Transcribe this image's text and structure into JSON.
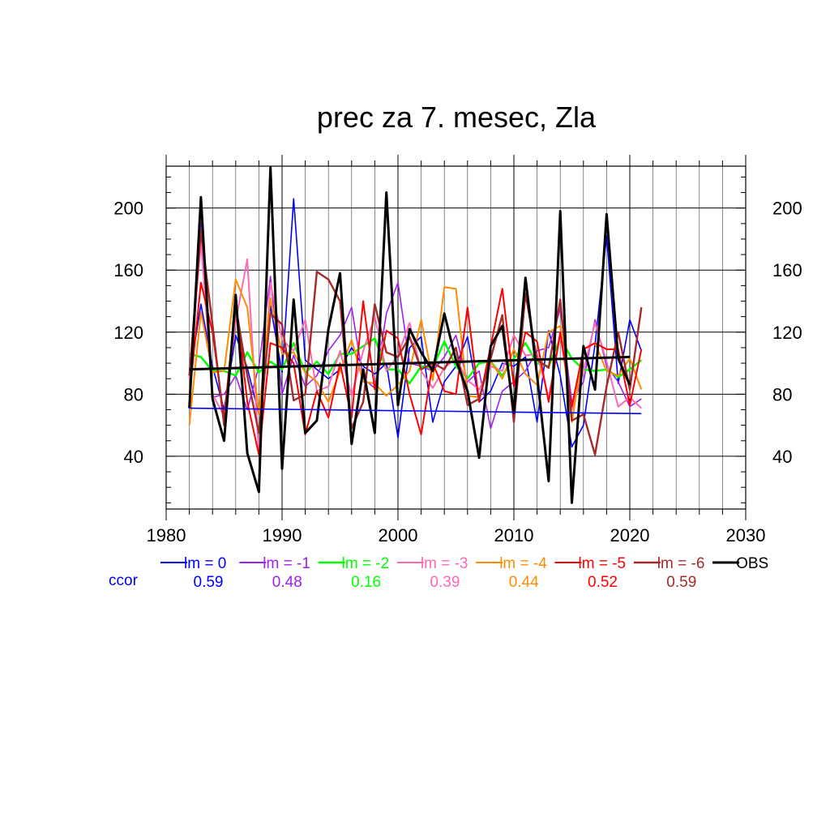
{
  "chart_data": {
    "type": "line",
    "title": "prec za 7. mesec, Zla",
    "xlabel": "",
    "ylabel": "",
    "xlim": [
      1980,
      2030
    ],
    "ylim": [
      6,
      227
    ],
    "x_ticks": [
      "1980",
      "1990",
      "2000",
      "2010",
      "2020",
      "2030"
    ],
    "x_tick_values": [
      1980,
      1990,
      2000,
      2010,
      2020,
      2030
    ],
    "y_ticks": [
      "40",
      "80",
      "120",
      "160",
      "200"
    ],
    "y_tick_values": [
      40,
      80,
      120,
      160,
      200
    ],
    "grid": true,
    "legend_position": "bottom",
    "ccor_label": "ccor",
    "x": [
      1982,
      1983,
      1984,
      1985,
      1986,
      1987,
      1988,
      1989,
      1990,
      1991,
      1992,
      1993,
      1994,
      1995,
      1996,
      1997,
      1998,
      1999,
      2000,
      2001,
      2002,
      2003,
      2004,
      2005,
      2006,
      2007,
      2008,
      2009,
      2010,
      2011,
      2012,
      2013,
      2014,
      2015,
      2016,
      2017,
      2018,
      2019,
      2020,
      2021
    ],
    "series": [
      {
        "name": "lm = 0",
        "color": "#0000ff",
        "width": 1.6,
        "ccor": "0.59",
        "values": [
          91,
          138,
          98,
          70,
          118,
          97,
          67,
          137,
          94,
          206,
          102,
          96,
          90,
          96,
          110,
          98,
          93,
          100,
          52,
          110,
          117,
          62,
          88,
          98,
          117,
          75,
          82,
          100,
          98,
          104,
          62,
          121,
          92,
          46,
          60,
          112,
          182,
          87,
          128,
          108
        ]
      },
      {
        "name": "lm = -1",
        "color": "#a020f0",
        "width": 1.6,
        "ccor": "0.48",
        "values": [
          92,
          191,
          78,
          80,
          92,
          70,
          98,
          156,
          80,
          105,
          85,
          92,
          108,
          118,
          136,
          90,
          84,
          132,
          152,
          100,
          98,
          95,
          104,
          118,
          88,
          95,
          58,
          82,
          88,
          95,
          108,
          110,
          135,
          75,
          88,
          128,
          98,
          88,
          72,
          77
        ]
      },
      {
        "name": "lm = -2",
        "color": "#00ff00",
        "width": 2.5,
        "ccor": "0.16",
        "values": [
          106,
          104,
          95,
          95,
          92,
          107,
          94,
          101,
          96,
          113,
          94,
          101,
          93,
          106,
          106,
          111,
          116,
          96,
          96,
          87,
          98,
          97,
          114,
          98,
          90,
          100,
          101,
          92,
          103,
          113,
          100,
          98,
          116,
          103,
          96,
          95,
          96,
          91,
          96,
          102
        ]
      },
      {
        "name": "lm = -3",
        "color": "#ff69b4",
        "width": 2.0,
        "ccor": "0.39",
        "values": [
          90,
          178,
          80,
          66,
          127,
          167,
          42,
          152,
          115,
          108,
          128,
          82,
          85,
          108,
          79,
          108,
          130,
          95,
          105,
          126,
          95,
          84,
          97,
          103,
          89,
          83,
          98,
          95,
          118,
          105,
          106,
          78,
          118,
          70,
          95,
          126,
          101,
          72,
          78,
          71
        ]
      },
      {
        "name": "lm = -4",
        "color": "#ff8c00",
        "width": 2.0,
        "ccor": "0.44",
        "values": [
          60,
          133,
          94,
          95,
          154,
          136,
          67,
          142,
          106,
          107,
          94,
          88,
          75,
          95,
          115,
          88,
          87,
          79,
          86,
          95,
          128,
          89,
          149,
          148,
          79,
          78,
          101,
          90,
          109,
          93,
          86,
          120,
          124,
          62,
          109,
          113,
          95,
          92,
          103,
          83
        ]
      },
      {
        "name": "lm = -5",
        "color": "#ff0000",
        "width": 2.0,
        "ccor": "0.52",
        "values": [
          78,
          152,
          120,
          64,
          140,
          75,
          41,
          113,
          110,
          100,
          54,
          82,
          65,
          100,
          65,
          140,
          83,
          121,
          116,
          80,
          54,
          100,
          82,
          80,
          136,
          75,
          111,
          148,
          85,
          120,
          114,
          75,
          120,
          72,
          109,
          113,
          109,
          109,
          73,
          109
        ]
      },
      {
        "name": "lm = -6",
        "color": "#a52a2a",
        "width": 2.4,
        "ccor": "0.59",
        "values": [
          92,
          185,
          125,
          60,
          137,
          92,
          55,
          132,
          125,
          76,
          80,
          159,
          154,
          140,
          58,
          75,
          138,
          107,
          104,
          117,
          96,
          100,
          96,
          110,
          73,
          77,
          103,
          131,
          62,
          145,
          102,
          97,
          141,
          63,
          67,
          41,
          85,
          120,
          83,
          136
        ]
      },
      {
        "name": "OBS",
        "color": "#000000",
        "width": 3.0,
        "ccor": "",
        "values": [
          71,
          207,
          77,
          50,
          144,
          42,
          17,
          226,
          32,
          141,
          55,
          63,
          122,
          158,
          48,
          96,
          55,
          210,
          73,
          122,
          107,
          95,
          132,
          102,
          82,
          39,
          111,
          124,
          68,
          155,
          92,
          24,
          198,
          10,
          111,
          83,
          196,
          103,
          86,
          null
        ]
      }
    ],
    "trend_lines": [
      {
        "name": "lm = 0 trend",
        "color": "#0000ff",
        "width": 1.6,
        "x": [
          1982,
          2021
        ],
        "values": [
          71,
          67.5
        ]
      },
      {
        "name": "OBS trend",
        "color": "#000000",
        "width": 3.0,
        "x": [
          1982,
          2020
        ],
        "values": [
          96,
          104
        ]
      }
    ]
  }
}
